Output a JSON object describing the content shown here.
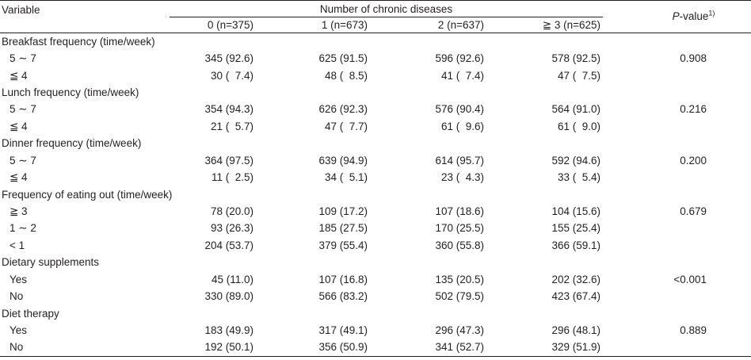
{
  "table": {
    "header": {
      "variable": "Variable",
      "group_title": "Number of chronic diseases",
      "pvalue_main": "-value",
      "pvalue_p": "P",
      "pvalue_sup": "1)",
      "columns": [
        "0 (n=375)",
        "1 (n=673)",
        "2 (n=637)",
        "≧ 3 (n=625)"
      ]
    },
    "sections": [
      {
        "title": "Breakfast frequency (time/week)",
        "rows": [
          {
            "label": "5 ∼ 7",
            "values": [
              "345 (92.6)",
              "625 (91.5)",
              "596 (92.6)",
              "578 (92.5)"
            ],
            "p": "0.908"
          },
          {
            "label": "≦ 4",
            "values": [
              "30 (  7.4)",
              "48 (  8.5)",
              "41 (  7.4)",
              "47 (  7.5)"
            ],
            "p": ""
          }
        ]
      },
      {
        "title": "Lunch frequency (time/week)",
        "rows": [
          {
            "label": "5 ∼ 7",
            "values": [
              "354 (94.3)",
              "626 (92.3)",
              "576 (90.4)",
              "564 (91.0)"
            ],
            "p": "0.216"
          },
          {
            "label": "≦ 4",
            "values": [
              "21 (  5.7)",
              "47 (  7.7)",
              "61 (  9.6)",
              "61 (  9.0)"
            ],
            "p": ""
          }
        ]
      },
      {
        "title": "Dinner frequency (time/week)",
        "rows": [
          {
            "label": "5 ∼ 7",
            "values": [
              "364 (97.5)",
              "639 (94.9)",
              "614 (95.7)",
              "592 (94.6)"
            ],
            "p": "0.200"
          },
          {
            "label": "≦ 4",
            "values": [
              "11 (  2.5)",
              "34 (  5.1)",
              "23 (  4.3)",
              "33 (  5.4)"
            ],
            "p": ""
          }
        ]
      },
      {
        "title": "Frequency of eating out (time/week)",
        "rows": [
          {
            "label": "≧ 3",
            "values": [
              "78 (20.0)",
              "109 (17.2)",
              "107 (18.6)",
              "104 (15.6)"
            ],
            "p": "0.679"
          },
          {
            "label": "1 ∼ 2",
            "values": [
              "93 (26.3)",
              "185 (27.5)",
              "170 (25.5)",
              "155 (25.4)"
            ],
            "p": ""
          },
          {
            "label": "< 1",
            "values": [
              "204 (53.7)",
              "379 (55.4)",
              "360 (55.8)",
              "366 (59.1)"
            ],
            "p": ""
          }
        ]
      },
      {
        "title": "Dietary supplements",
        "rows": [
          {
            "label": "Yes",
            "values": [
              "45 (11.0)",
              "107 (16.8)",
              "135 (20.5)",
              "202 (32.6)"
            ],
            "p": "<0.001"
          },
          {
            "label": "No",
            "values": [
              "330 (89.0)",
              "566 (83.2)",
              "502 (79.5)",
              "423 (67.4)"
            ],
            "p": ""
          }
        ]
      },
      {
        "title": "Diet therapy",
        "rows": [
          {
            "label": "Yes",
            "values": [
              "183 (49.9)",
              "317 (49.1)",
              "296 (47.3)",
              "296 (48.1)"
            ],
            "p": "0.889"
          },
          {
            "label": "No",
            "values": [
              "192 (50.1)",
              "356 (50.9)",
              "341 (52.7)",
              "329 (51.9)"
            ],
            "p": ""
          }
        ]
      }
    ]
  }
}
